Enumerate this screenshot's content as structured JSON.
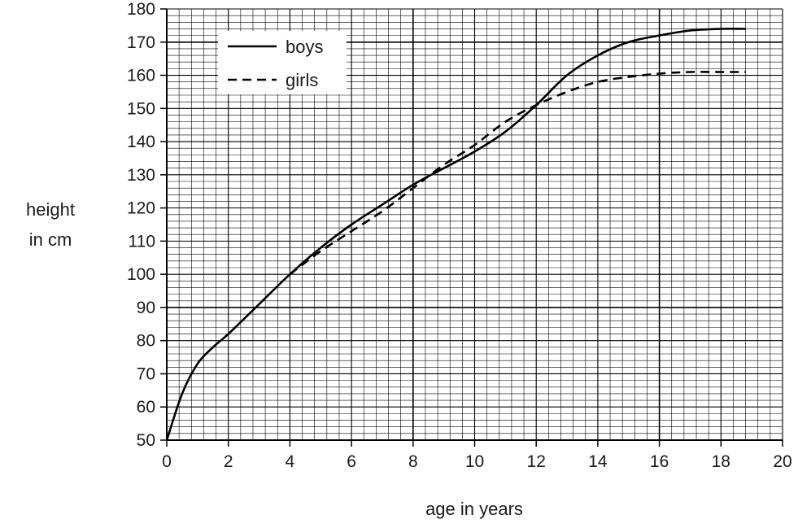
{
  "chart_data": {
    "type": "line",
    "title": "",
    "xlabel": "age in years",
    "ylabel_lines": [
      "height",
      "in cm"
    ],
    "xlim": [
      0,
      20
    ],
    "ylim": [
      50,
      180
    ],
    "xticks": [
      0,
      2,
      4,
      6,
      8,
      10,
      12,
      14,
      16,
      18,
      20
    ],
    "yticks": [
      50,
      60,
      70,
      80,
      90,
      100,
      110,
      120,
      130,
      140,
      150,
      160,
      170,
      180
    ],
    "grid": "on",
    "legend": "top-left",
    "series": [
      {
        "name": "boys",
        "style": "solid",
        "color": "#000000",
        "points": [
          [
            0,
            50
          ],
          [
            0.5,
            64
          ],
          [
            1,
            73
          ],
          [
            1.5,
            78
          ],
          [
            2,
            82
          ],
          [
            3,
            91
          ],
          [
            4,
            100
          ],
          [
            5,
            108
          ],
          [
            6,
            115
          ],
          [
            7,
            121
          ],
          [
            8,
            127
          ],
          [
            9,
            132
          ],
          [
            10,
            137
          ],
          [
            11,
            143
          ],
          [
            12,
            151
          ],
          [
            13,
            160
          ],
          [
            14,
            166
          ],
          [
            15,
            170
          ],
          [
            16,
            172
          ],
          [
            17,
            173.5
          ],
          [
            18,
            174
          ],
          [
            18.8,
            174
          ]
        ]
      },
      {
        "name": "girls",
        "style": "dashed",
        "color": "#000000",
        "points": [
          [
            4,
            100
          ],
          [
            5,
            107
          ],
          [
            6,
            113
          ],
          [
            7,
            119
          ],
          [
            8,
            126
          ],
          [
            9,
            133
          ],
          [
            10,
            139
          ],
          [
            11,
            146
          ],
          [
            12,
            151
          ],
          [
            13,
            155
          ],
          [
            14,
            158
          ],
          [
            15,
            159.5
          ],
          [
            16,
            160.5
          ],
          [
            17,
            161
          ],
          [
            18,
            161
          ],
          [
            18.8,
            161
          ]
        ]
      }
    ]
  }
}
